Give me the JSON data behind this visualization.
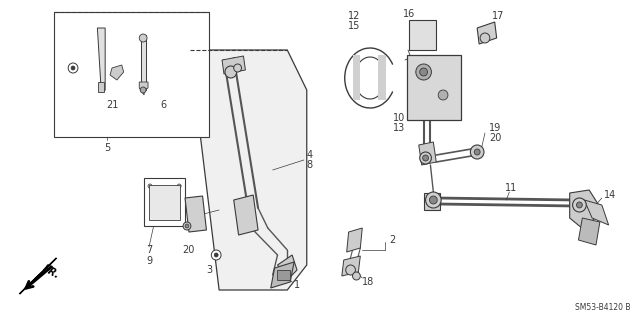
{
  "bg_color": "#ffffff",
  "line_color": "#3a3a3a",
  "watermark": "SM53-B4120 B",
  "figsize": [
    6.4,
    3.19
  ],
  "dpi": 100
}
